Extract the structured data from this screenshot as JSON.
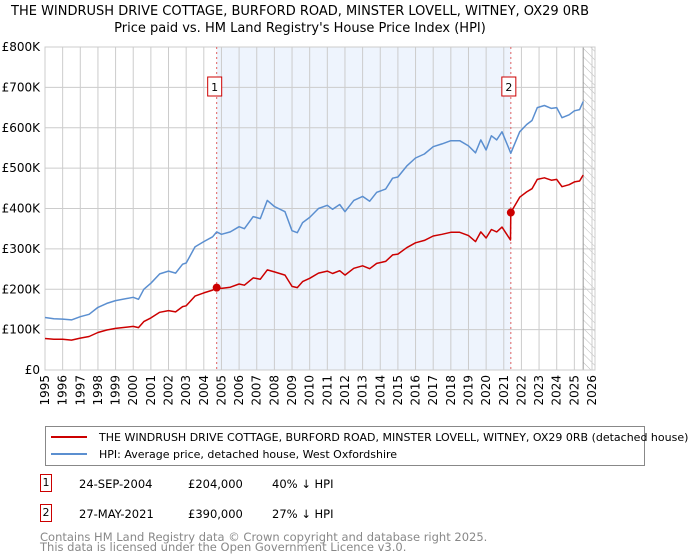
{
  "chart_data": {
    "type": "line",
    "title": "THE WINDRUSH DRIVE COTTAGE, BURFORD ROAD, MINSTER LOVELL, WITNEY, OX29 0RB",
    "subtitle": "Price paid vs. HM Land Registry's House Price Index (HPI)",
    "xlim": [
      1995,
      2026
    ],
    "ylim": [
      0,
      800000
    ],
    "x_ticks": [
      "1995",
      "1996",
      "1997",
      "1998",
      "1999",
      "2000",
      "2001",
      "2002",
      "2003",
      "2004",
      "2005",
      "2006",
      "2007",
      "2008",
      "2009",
      "2010",
      "2011",
      "2012",
      "2013",
      "2014",
      "2015",
      "2016",
      "2017",
      "2018",
      "2019",
      "2020",
      "2021",
      "2022",
      "2023",
      "2024",
      "2025",
      "2026"
    ],
    "y_ticks": [
      {
        "value": 0,
        "label": "£0"
      },
      {
        "value": 100000,
        "label": "£100K"
      },
      {
        "value": 200000,
        "label": "£200K"
      },
      {
        "value": 300000,
        "label": "£300K"
      },
      {
        "value": 400000,
        "label": "£400K"
      },
      {
        "value": 500000,
        "label": "£500K"
      },
      {
        "value": 600000,
        "label": "£600K"
      },
      {
        "value": 700000,
        "label": "£700K"
      },
      {
        "value": 800000,
        "label": "£800K"
      }
    ],
    "grid": true,
    "shaded_range": [
      2004.73,
      2021.4
    ],
    "forecast_hatch_from": 2025.5,
    "series": [
      {
        "name": "THE WINDRUSH DRIVE COTTAGE, BURFORD ROAD, MINSTER LOVELL, WITNEY, OX29 0RB (detached house)",
        "color": "#cc0000",
        "points": [
          [
            1995,
            78
          ],
          [
            1995.5,
            76
          ],
          [
            1996,
            76
          ],
          [
            1996.5,
            74
          ],
          [
            1997,
            79
          ],
          [
            1997.5,
            83
          ],
          [
            1998,
            93
          ],
          [
            1998.5,
            99
          ],
          [
            1999,
            103
          ],
          [
            2000,
            108
          ],
          [
            2000.3,
            105
          ],
          [
            2000.6,
            120
          ],
          [
            2001,
            129
          ],
          [
            2001.5,
            143
          ],
          [
            2002,
            147
          ],
          [
            2002.4,
            144
          ],
          [
            2002.8,
            157
          ],
          [
            2003,
            159
          ],
          [
            2003.5,
            183
          ],
          [
            2004,
            191
          ],
          [
            2004.5,
            198
          ],
          [
            2004.73,
            204
          ],
          [
            2005,
            202
          ],
          [
            2005.5,
            205
          ],
          [
            2006,
            213
          ],
          [
            2006.3,
            210
          ],
          [
            2006.8,
            228
          ],
          [
            2007.2,
            225
          ],
          [
            2007.6,
            248
          ],
          [
            2008,
            243
          ],
          [
            2008.6,
            235
          ],
          [
            2009,
            207
          ],
          [
            2009.3,
            204
          ],
          [
            2009.6,
            219
          ],
          [
            2010,
            227
          ],
          [
            2010.5,
            240
          ],
          [
            2011,
            245
          ],
          [
            2011.3,
            239
          ],
          [
            2011.7,
            246
          ],
          [
            2012,
            235
          ],
          [
            2012.5,
            252
          ],
          [
            2013,
            258
          ],
          [
            2013.4,
            251
          ],
          [
            2013.8,
            264
          ],
          [
            2014.3,
            269
          ],
          [
            2014.7,
            285
          ],
          [
            2015,
            287
          ],
          [
            2015.5,
            303
          ],
          [
            2016,
            315
          ],
          [
            2016.5,
            321
          ],
          [
            2017,
            332
          ],
          [
            2017.5,
            336
          ],
          [
            2018,
            341
          ],
          [
            2018.5,
            341
          ],
          [
            2019,
            333
          ],
          [
            2019.4,
            318
          ],
          [
            2019.7,
            342
          ],
          [
            2020,
            327
          ],
          [
            2020.3,
            348
          ],
          [
            2020.6,
            342
          ],
          [
            2020.9,
            354
          ],
          [
            2021.38,
            322
          ],
          [
            2021.4,
            390
          ],
          [
            2021.9,
            428
          ],
          [
            2022.3,
            441
          ],
          [
            2022.6,
            449
          ],
          [
            2022.9,
            472
          ],
          [
            2023.3,
            476
          ],
          [
            2023.7,
            470
          ],
          [
            2024,
            472
          ],
          [
            2024.3,
            454
          ],
          [
            2024.7,
            459
          ],
          [
            2025,
            466
          ],
          [
            2025.3,
            468
          ],
          [
            2025.5,
            483
          ]
        ]
      },
      {
        "name": "HPI: Average price, detached house, West Oxfordshire",
        "color": "#5b8fd0",
        "points": [
          [
            1995,
            130
          ],
          [
            1995.5,
            127
          ],
          [
            1996,
            126
          ],
          [
            1996.5,
            124
          ],
          [
            1997,
            132
          ],
          [
            1997.5,
            138
          ],
          [
            1998,
            155
          ],
          [
            1998.5,
            165
          ],
          [
            1999,
            172
          ],
          [
            2000,
            180
          ],
          [
            2000.3,
            175
          ],
          [
            2000.6,
            200
          ],
          [
            2001,
            215
          ],
          [
            2001.5,
            238
          ],
          [
            2002,
            245
          ],
          [
            2002.4,
            240
          ],
          [
            2002.8,
            262
          ],
          [
            2003,
            265
          ],
          [
            2003.5,
            305
          ],
          [
            2004,
            318
          ],
          [
            2004.5,
            330
          ],
          [
            2004.73,
            342
          ],
          [
            2005,
            336
          ],
          [
            2005.5,
            342
          ],
          [
            2006,
            355
          ],
          [
            2006.3,
            350
          ],
          [
            2006.8,
            380
          ],
          [
            2007.2,
            375
          ],
          [
            2007.6,
            420
          ],
          [
            2008,
            405
          ],
          [
            2008.6,
            392
          ],
          [
            2009,
            345
          ],
          [
            2009.3,
            340
          ],
          [
            2009.6,
            365
          ],
          [
            2010,
            378
          ],
          [
            2010.5,
            400
          ],
          [
            2011,
            408
          ],
          [
            2011.3,
            398
          ],
          [
            2011.7,
            410
          ],
          [
            2012,
            392
          ],
          [
            2012.5,
            420
          ],
          [
            2013,
            430
          ],
          [
            2013.4,
            418
          ],
          [
            2013.8,
            440
          ],
          [
            2014.3,
            448
          ],
          [
            2014.7,
            475
          ],
          [
            2015,
            478
          ],
          [
            2015.5,
            505
          ],
          [
            2016,
            525
          ],
          [
            2016.5,
            535
          ],
          [
            2017,
            553
          ],
          [
            2017.5,
            560
          ],
          [
            2018,
            568
          ],
          [
            2018.5,
            568
          ],
          [
            2019,
            555
          ],
          [
            2019.4,
            538
          ],
          [
            2019.7,
            570
          ],
          [
            2020,
            545
          ],
          [
            2020.3,
            580
          ],
          [
            2020.6,
            570
          ],
          [
            2020.9,
            590
          ],
          [
            2021.4,
            537
          ],
          [
            2021.9,
            590
          ],
          [
            2022.3,
            608
          ],
          [
            2022.6,
            618
          ],
          [
            2022.9,
            650
          ],
          [
            2023.3,
            655
          ],
          [
            2023.7,
            648
          ],
          [
            2024,
            650
          ],
          [
            2024.3,
            625
          ],
          [
            2024.7,
            632
          ],
          [
            2025,
            642
          ],
          [
            2025.3,
            645
          ],
          [
            2025.5,
            665
          ]
        ]
      }
    ],
    "value_unit": "thousands GBP",
    "annotations": [
      {
        "label": "1",
        "x": 2004.73,
        "y": 204
      },
      {
        "label": "2",
        "x": 2021.4,
        "y": 390
      }
    ]
  },
  "legend": {
    "items": [
      {
        "label": "THE WINDRUSH DRIVE COTTAGE, BURFORD ROAD, MINSTER LOVELL, WITNEY, OX29 0RB (detached house)",
        "color": "#cc0000"
      },
      {
        "label": "HPI: Average price, detached house, West Oxfordshire",
        "color": "#5b8fd0"
      }
    ]
  },
  "sales": [
    {
      "num": "1",
      "date": "24-SEP-2004",
      "price": "£204,000",
      "hpi": "40% ↓ HPI"
    },
    {
      "num": "2",
      "date": "27-MAY-2021",
      "price": "£390,000",
      "hpi": "27% ↓ HPI"
    }
  ],
  "footer": {
    "line1": "Contains HM Land Registry data © Crown copyright and database right 2025.",
    "line2": "This data is licensed under the Open Government Licence v3.0."
  }
}
